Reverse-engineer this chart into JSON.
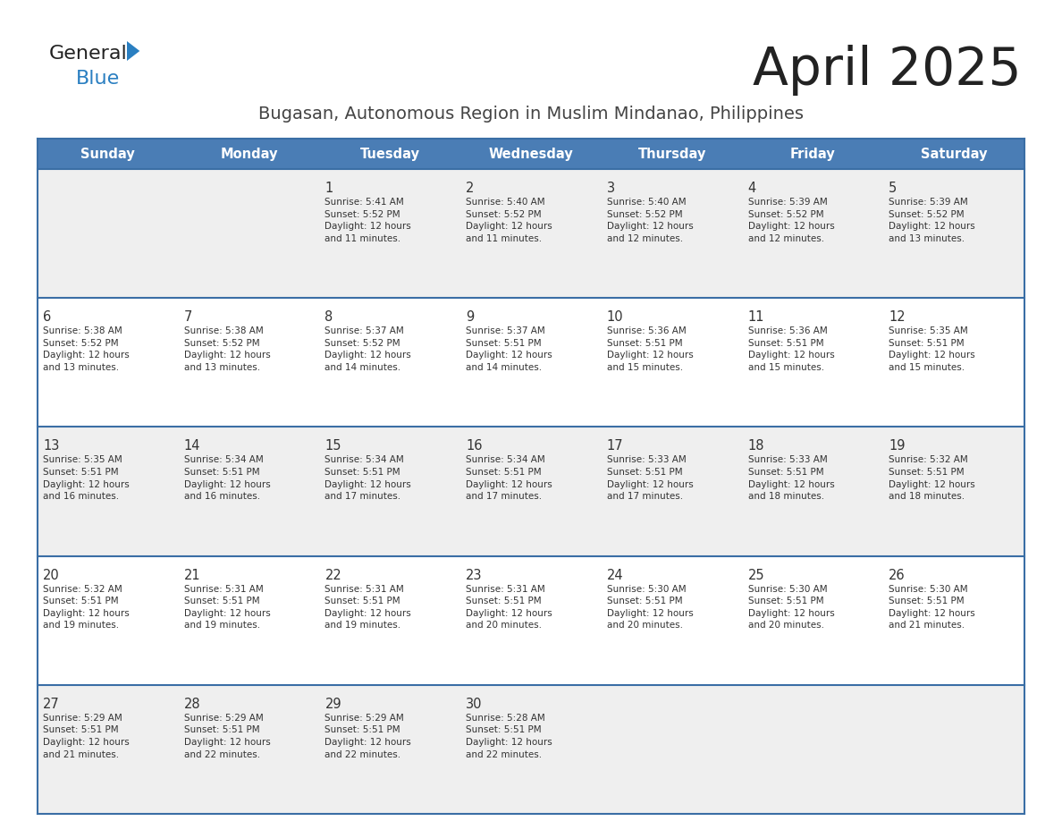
{
  "title": "April 2025",
  "subtitle": "Bugasan, Autonomous Region in Muslim Mindanao, Philippines",
  "header_bg": "#4a7db5",
  "header_text_color": "#ffffff",
  "days_of_week": [
    "Sunday",
    "Monday",
    "Tuesday",
    "Wednesday",
    "Thursday",
    "Friday",
    "Saturday"
  ],
  "row_bg_odd": "#efefef",
  "row_bg_even": "#ffffff",
  "cell_text_color": "#333333",
  "border_color": "#3a6ea5",
  "logo_general_color": "#222222",
  "logo_blue_color": "#2a7fc1",
  "logo_triangle_color": "#2a7fc1",
  "title_color": "#222222",
  "subtitle_color": "#444444",
  "calendar": [
    [
      {
        "day": "",
        "sunrise": "",
        "sunset": "",
        "daylight": ""
      },
      {
        "day": "",
        "sunrise": "",
        "sunset": "",
        "daylight": ""
      },
      {
        "day": "1",
        "sunrise": "Sunrise: 5:41 AM",
        "sunset": "Sunset: 5:52 PM",
        "daylight": "Daylight: 12 hours\nand 11 minutes."
      },
      {
        "day": "2",
        "sunrise": "Sunrise: 5:40 AM",
        "sunset": "Sunset: 5:52 PM",
        "daylight": "Daylight: 12 hours\nand 11 minutes."
      },
      {
        "day": "3",
        "sunrise": "Sunrise: 5:40 AM",
        "sunset": "Sunset: 5:52 PM",
        "daylight": "Daylight: 12 hours\nand 12 minutes."
      },
      {
        "day": "4",
        "sunrise": "Sunrise: 5:39 AM",
        "sunset": "Sunset: 5:52 PM",
        "daylight": "Daylight: 12 hours\nand 12 minutes."
      },
      {
        "day": "5",
        "sunrise": "Sunrise: 5:39 AM",
        "sunset": "Sunset: 5:52 PM",
        "daylight": "Daylight: 12 hours\nand 13 minutes."
      }
    ],
    [
      {
        "day": "6",
        "sunrise": "Sunrise: 5:38 AM",
        "sunset": "Sunset: 5:52 PM",
        "daylight": "Daylight: 12 hours\nand 13 minutes."
      },
      {
        "day": "7",
        "sunrise": "Sunrise: 5:38 AM",
        "sunset": "Sunset: 5:52 PM",
        "daylight": "Daylight: 12 hours\nand 13 minutes."
      },
      {
        "day": "8",
        "sunrise": "Sunrise: 5:37 AM",
        "sunset": "Sunset: 5:52 PM",
        "daylight": "Daylight: 12 hours\nand 14 minutes."
      },
      {
        "day": "9",
        "sunrise": "Sunrise: 5:37 AM",
        "sunset": "Sunset: 5:51 PM",
        "daylight": "Daylight: 12 hours\nand 14 minutes."
      },
      {
        "day": "10",
        "sunrise": "Sunrise: 5:36 AM",
        "sunset": "Sunset: 5:51 PM",
        "daylight": "Daylight: 12 hours\nand 15 minutes."
      },
      {
        "day": "11",
        "sunrise": "Sunrise: 5:36 AM",
        "sunset": "Sunset: 5:51 PM",
        "daylight": "Daylight: 12 hours\nand 15 minutes."
      },
      {
        "day": "12",
        "sunrise": "Sunrise: 5:35 AM",
        "sunset": "Sunset: 5:51 PM",
        "daylight": "Daylight: 12 hours\nand 15 minutes."
      }
    ],
    [
      {
        "day": "13",
        "sunrise": "Sunrise: 5:35 AM",
        "sunset": "Sunset: 5:51 PM",
        "daylight": "Daylight: 12 hours\nand 16 minutes."
      },
      {
        "day": "14",
        "sunrise": "Sunrise: 5:34 AM",
        "sunset": "Sunset: 5:51 PM",
        "daylight": "Daylight: 12 hours\nand 16 minutes."
      },
      {
        "day": "15",
        "sunrise": "Sunrise: 5:34 AM",
        "sunset": "Sunset: 5:51 PM",
        "daylight": "Daylight: 12 hours\nand 17 minutes."
      },
      {
        "day": "16",
        "sunrise": "Sunrise: 5:34 AM",
        "sunset": "Sunset: 5:51 PM",
        "daylight": "Daylight: 12 hours\nand 17 minutes."
      },
      {
        "day": "17",
        "sunrise": "Sunrise: 5:33 AM",
        "sunset": "Sunset: 5:51 PM",
        "daylight": "Daylight: 12 hours\nand 17 minutes."
      },
      {
        "day": "18",
        "sunrise": "Sunrise: 5:33 AM",
        "sunset": "Sunset: 5:51 PM",
        "daylight": "Daylight: 12 hours\nand 18 minutes."
      },
      {
        "day": "19",
        "sunrise": "Sunrise: 5:32 AM",
        "sunset": "Sunset: 5:51 PM",
        "daylight": "Daylight: 12 hours\nand 18 minutes."
      }
    ],
    [
      {
        "day": "20",
        "sunrise": "Sunrise: 5:32 AM",
        "sunset": "Sunset: 5:51 PM",
        "daylight": "Daylight: 12 hours\nand 19 minutes."
      },
      {
        "day": "21",
        "sunrise": "Sunrise: 5:31 AM",
        "sunset": "Sunset: 5:51 PM",
        "daylight": "Daylight: 12 hours\nand 19 minutes."
      },
      {
        "day": "22",
        "sunrise": "Sunrise: 5:31 AM",
        "sunset": "Sunset: 5:51 PM",
        "daylight": "Daylight: 12 hours\nand 19 minutes."
      },
      {
        "day": "23",
        "sunrise": "Sunrise: 5:31 AM",
        "sunset": "Sunset: 5:51 PM",
        "daylight": "Daylight: 12 hours\nand 20 minutes."
      },
      {
        "day": "24",
        "sunrise": "Sunrise: 5:30 AM",
        "sunset": "Sunset: 5:51 PM",
        "daylight": "Daylight: 12 hours\nand 20 minutes."
      },
      {
        "day": "25",
        "sunrise": "Sunrise: 5:30 AM",
        "sunset": "Sunset: 5:51 PM",
        "daylight": "Daylight: 12 hours\nand 20 minutes."
      },
      {
        "day": "26",
        "sunrise": "Sunrise: 5:30 AM",
        "sunset": "Sunset: 5:51 PM",
        "daylight": "Daylight: 12 hours\nand 21 minutes."
      }
    ],
    [
      {
        "day": "27",
        "sunrise": "Sunrise: 5:29 AM",
        "sunset": "Sunset: 5:51 PM",
        "daylight": "Daylight: 12 hours\nand 21 minutes."
      },
      {
        "day": "28",
        "sunrise": "Sunrise: 5:29 AM",
        "sunset": "Sunset: 5:51 PM",
        "daylight": "Daylight: 12 hours\nand 22 minutes."
      },
      {
        "day": "29",
        "sunrise": "Sunrise: 5:29 AM",
        "sunset": "Sunset: 5:51 PM",
        "daylight": "Daylight: 12 hours\nand 22 minutes."
      },
      {
        "day": "30",
        "sunrise": "Sunrise: 5:28 AM",
        "sunset": "Sunset: 5:51 PM",
        "daylight": "Daylight: 12 hours\nand 22 minutes."
      },
      {
        "day": "",
        "sunrise": "",
        "sunset": "",
        "daylight": ""
      },
      {
        "day": "",
        "sunrise": "",
        "sunset": "",
        "daylight": ""
      },
      {
        "day": "",
        "sunrise": "",
        "sunset": "",
        "daylight": ""
      }
    ]
  ]
}
